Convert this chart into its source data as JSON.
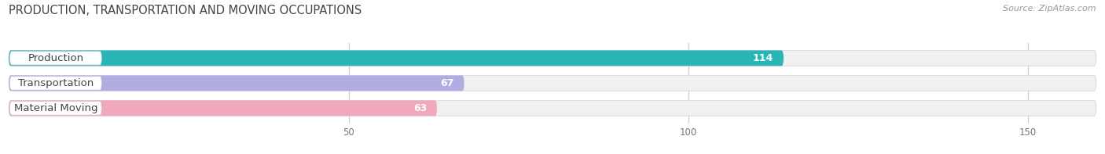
{
  "title": "PRODUCTION, TRANSPORTATION AND MOVING OCCUPATIONS",
  "source_text": "Source: ZipAtlas.com",
  "categories": [
    "Production",
    "Transportation",
    "Material Moving"
  ],
  "values": [
    114,
    67,
    63
  ],
  "bar_colors": [
    "#29b5b5",
    "#b0aee0",
    "#f0a8bc"
  ],
  "bar_bg_color": "#f0f0f0",
  "label_bg_color": "#ffffff",
  "xlim": [
    0,
    160
  ],
  "xticks": [
    50,
    100,
    150
  ],
  "title_fontsize": 10.5,
  "label_fontsize": 9.5,
  "value_fontsize": 9,
  "bar_height": 0.62,
  "background_color": "#ffffff"
}
